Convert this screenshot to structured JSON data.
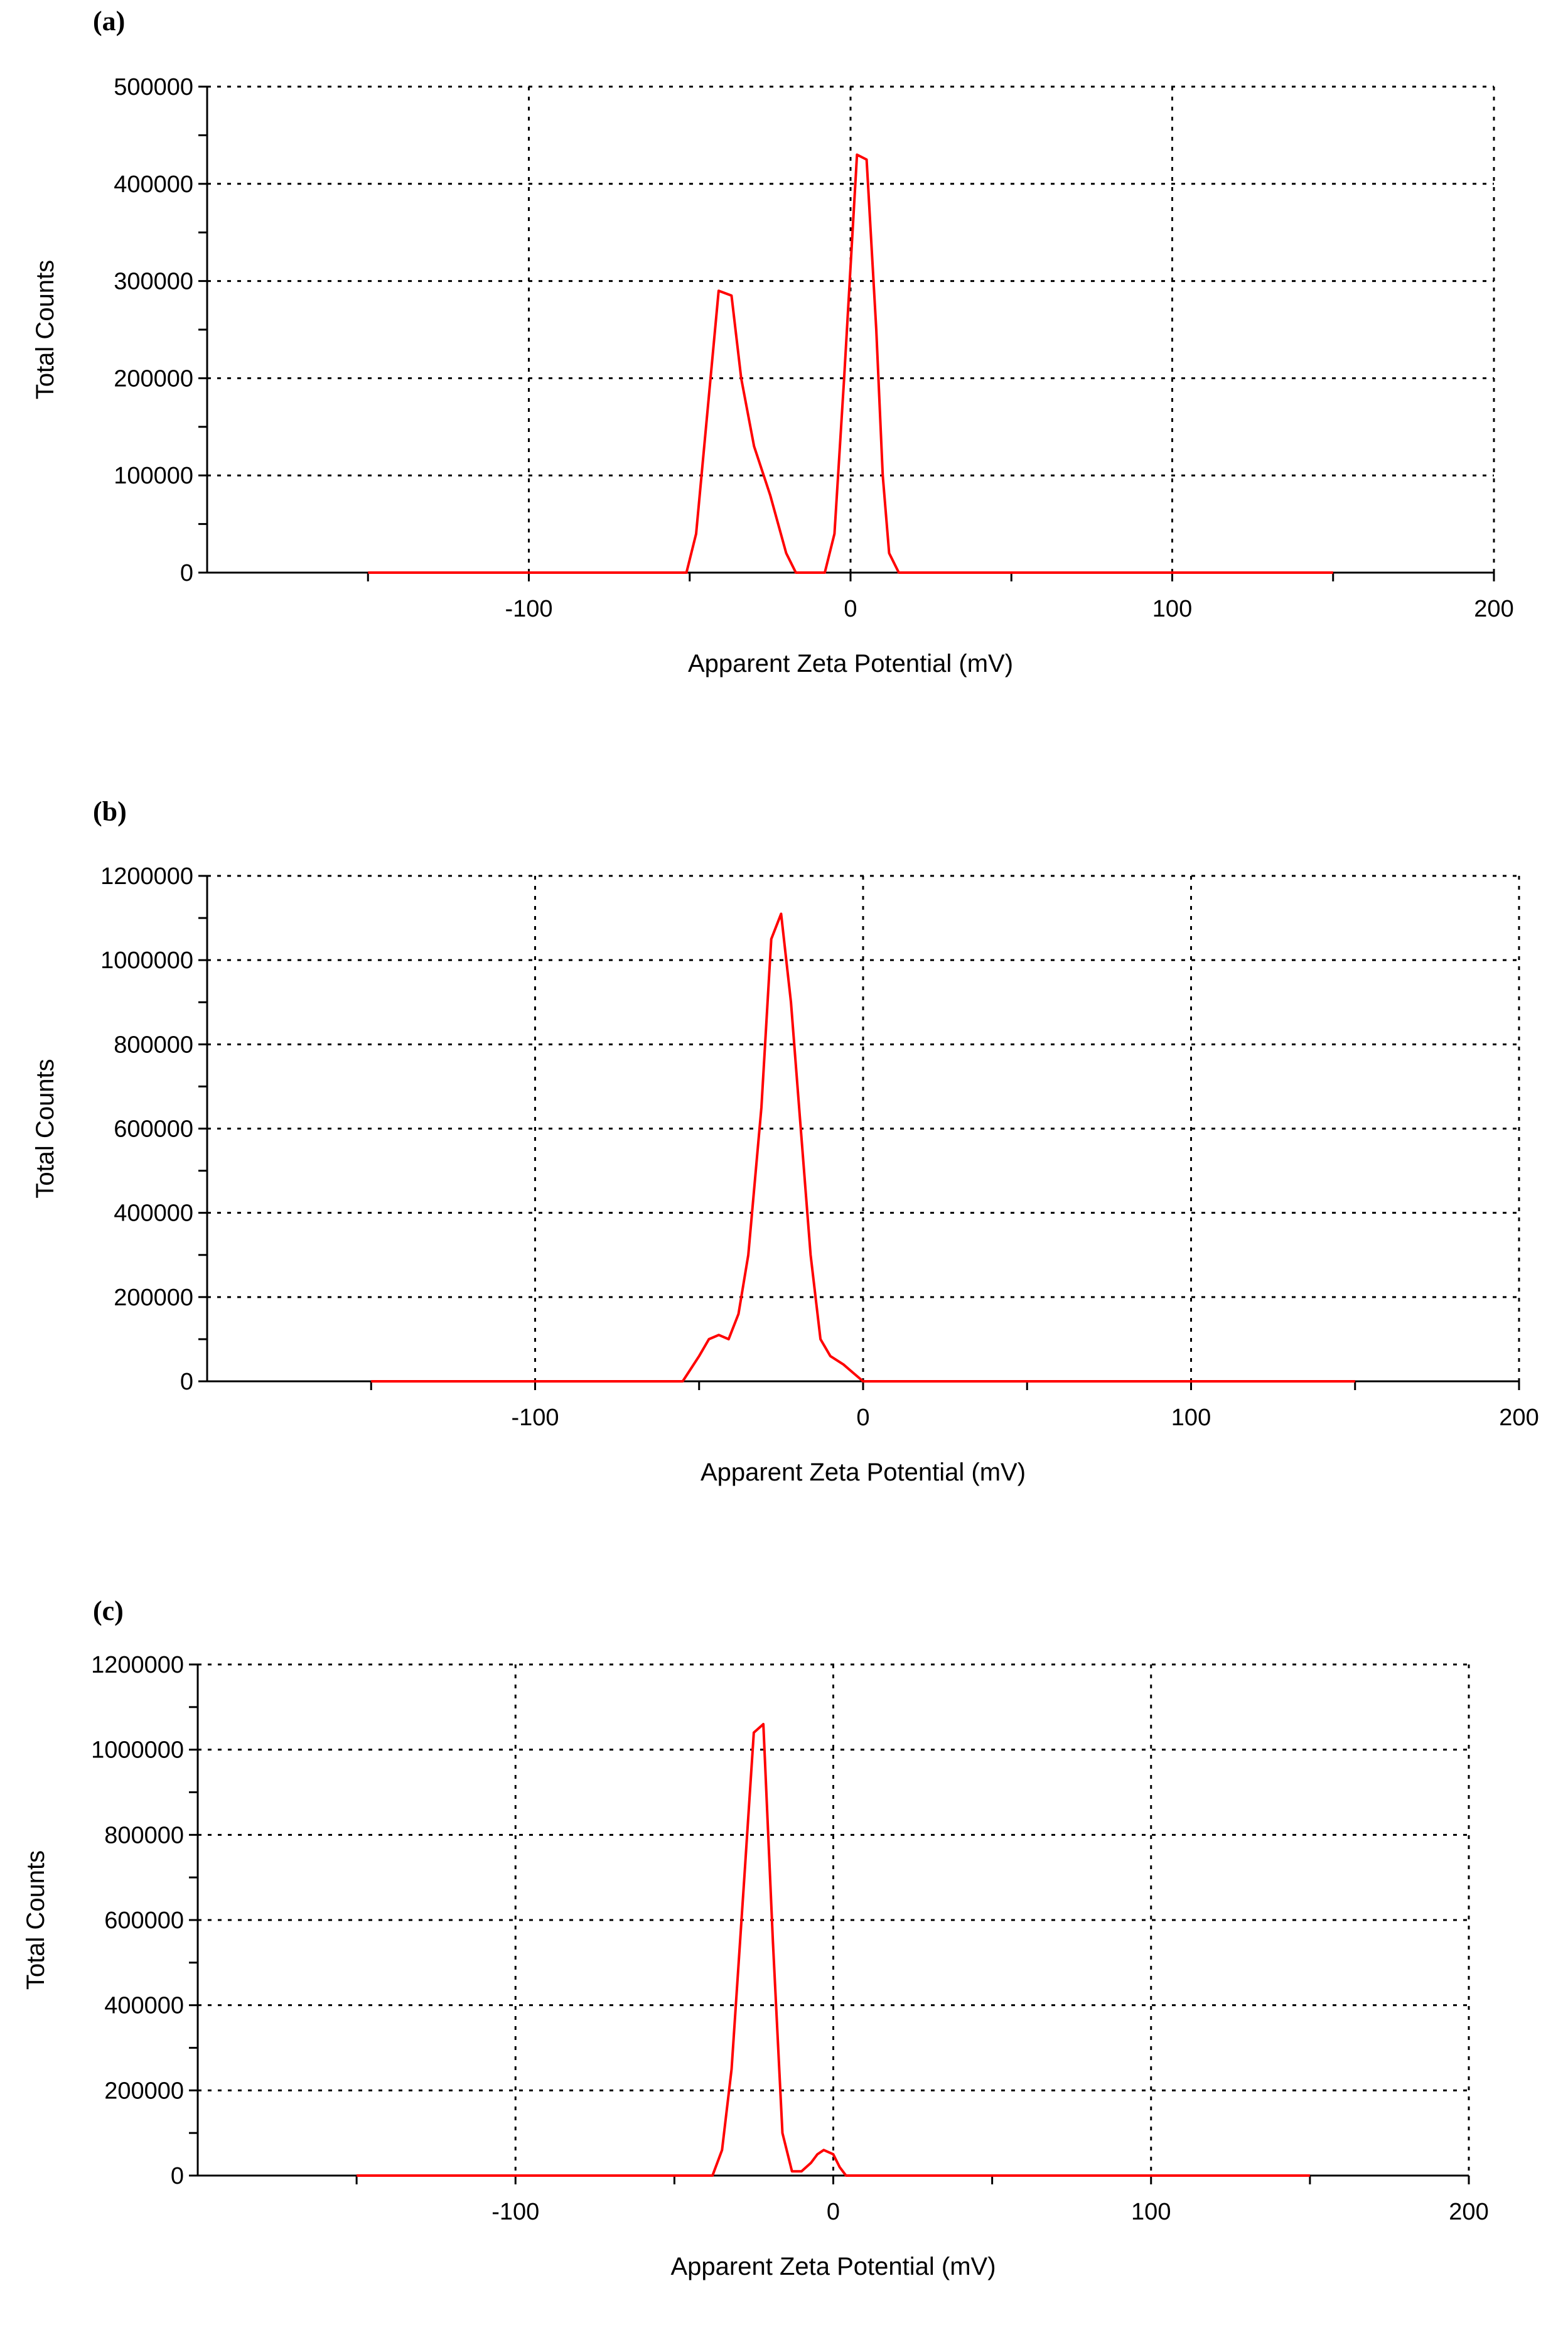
{
  "chart_data": [
    {
      "panel_label": "(a)",
      "type": "line",
      "xlabel": "Apparent Zeta Potential (mV)",
      "ylabel": "Total Counts",
      "xlim": [
        -200,
        200
      ],
      "ylim": [
        0,
        500000
      ],
      "xticks": [
        -100,
        0,
        100,
        200
      ],
      "yticks": [
        0,
        100000,
        200000,
        300000,
        400000,
        500000
      ],
      "xtick_labels": [
        "-100",
        "0",
        "100",
        "200"
      ],
      "ytick_labels": [
        "0",
        "100000",
        "200000",
        "300000",
        "400000",
        "500000"
      ],
      "grid": true,
      "line_color": "#ff0000",
      "series": [
        {
          "x": [
            -150,
            -51,
            -48,
            -41,
            -37,
            -34,
            -30,
            -25,
            -20,
            -17,
            -15,
            -8,
            -5,
            -2,
            2,
            5,
            8,
            10,
            12,
            15,
            150
          ],
          "y": [
            0,
            0,
            40000,
            290000,
            285000,
            200000,
            130000,
            80000,
            20000,
            0,
            0,
            0,
            40000,
            200000,
            430000,
            425000,
            250000,
            100000,
            20000,
            0,
            0
          ]
        }
      ]
    },
    {
      "panel_label": "(b)",
      "type": "line",
      "xlabel": "Apparent Zeta Potential (mV)",
      "ylabel": "Total Counts",
      "xlim": [
        -200,
        200
      ],
      "ylim": [
        0,
        1200000
      ],
      "xticks": [
        -100,
        0,
        100,
        200
      ],
      "yticks": [
        0,
        200000,
        400000,
        600000,
        800000,
        1000000,
        1200000
      ],
      "xtick_labels": [
        "-100",
        "0",
        "100",
        "200"
      ],
      "ytick_labels": [
        "0",
        "200000",
        "400000",
        "600000",
        "800000",
        "1000000",
        "1200000"
      ],
      "grid": true,
      "line_color": "#ff0000",
      "series": [
        {
          "x": [
            -150,
            -55,
            -50,
            -47,
            -44,
            -41,
            -38,
            -35,
            -31,
            -28,
            -25,
            -22,
            -19,
            -16,
            -13,
            -10,
            -6,
            -3,
            0,
            150
          ],
          "y": [
            0,
            0,
            60000,
            100000,
            110000,
            100000,
            160000,
            300000,
            650000,
            1050000,
            1110000,
            900000,
            600000,
            300000,
            100000,
            60000,
            40000,
            20000,
            0,
            0
          ]
        }
      ]
    },
    {
      "panel_label": "(c)",
      "type": "line",
      "xlabel": "Apparent Zeta Potential (mV)",
      "ylabel": "Total Counts",
      "xlim": [
        -200,
        200
      ],
      "ylim": [
        0,
        1200000
      ],
      "xticks": [
        -100,
        0,
        100,
        200
      ],
      "yticks": [
        0,
        200000,
        400000,
        600000,
        800000,
        1000000,
        1200000
      ],
      "xtick_labels": [
        "-100",
        "0",
        "100",
        "200"
      ],
      "ytick_labels": [
        "0",
        "200000",
        "400000",
        "600000",
        "800000",
        "1000000",
        "1200000"
      ],
      "grid": true,
      "line_color": "#ff0000",
      "series": [
        {
          "x": [
            -150,
            -38,
            -35,
            -32,
            -28,
            -25,
            -22,
            -19,
            -16,
            -13,
            -10,
            -7,
            -5,
            -3,
            0,
            2,
            4,
            150
          ],
          "y": [
            0,
            0,
            60000,
            250000,
            700000,
            1040000,
            1060000,
            550000,
            100000,
            10000,
            10000,
            30000,
            50000,
            60000,
            50000,
            20000,
            0,
            0
          ]
        }
      ]
    }
  ]
}
